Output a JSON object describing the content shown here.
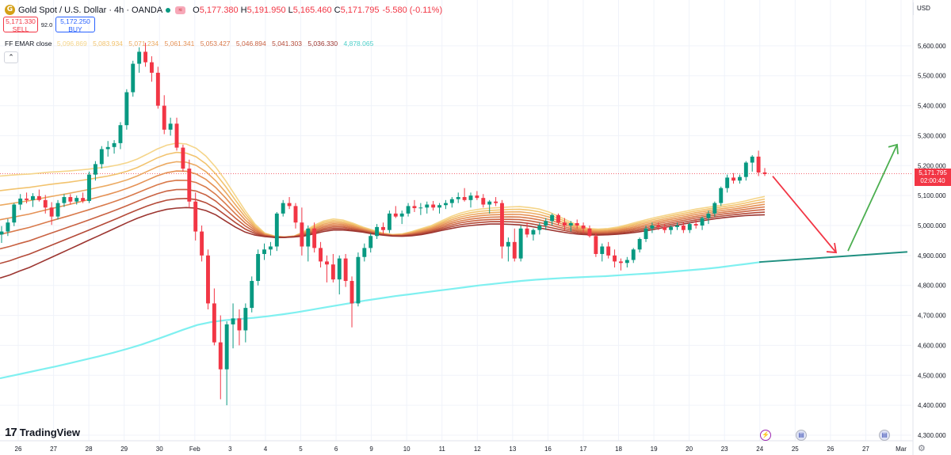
{
  "header": {
    "symbol_title": "Gold Spot / U.S. Dollar · 4h · OANDA",
    "icon_letter": "G",
    "open_label": "O",
    "open": "5,177.380",
    "high_label": "H",
    "high": "5,191.950",
    "low_label": "L",
    "low": "5,165.460",
    "close_label": "C",
    "close": "5,171.795",
    "change": "-5.580 (-0.11%)"
  },
  "trade": {
    "sell_price": "5,171.330",
    "sell_label": "SELL",
    "spread": "92.0",
    "buy_price": "5,172.250",
    "buy_label": "BUY"
  },
  "indicator": {
    "label": "FF EMAR close",
    "values": [
      "5,096.869",
      "5,083.934",
      "5,071.234",
      "5,061.341",
      "5,053.427",
      "5,046.894",
      "5,041.303",
      "5,036.330",
      "4,878.065"
    ],
    "colors": [
      "#f5d58a",
      "#f2c36e",
      "#ecaa62",
      "#e59155",
      "#d97a4b",
      "#c96242",
      "#b44a38",
      "#9c3530",
      "#4dd0c9"
    ],
    "collapse_icon": "chevron-up-icon",
    "collapse_glyph": "⌃"
  },
  "price_scale": {
    "currency": "USD",
    "ticks": [
      "5,600.000",
      "5,500.000",
      "5,400.000",
      "5,300.000",
      "5,200.000",
      "5,100.000",
      "5,000.000",
      "4,900.000",
      "4,800.000",
      "4,700.000",
      "4,600.000",
      "4,500.000",
      "4,400.000",
      "4,300.000"
    ],
    "current_price": "5,171.795",
    "countdown": "02:00:40"
  },
  "footer": {
    "brand": "TradingView",
    "brand_mark": "17",
    "settings_icon": "gear-icon",
    "settings_glyph": "⚙",
    "events": [
      {
        "icon": "flash-icon",
        "glyph": "⚡"
      },
      {
        "icon": "us-flag-icon",
        "glyph": "▤"
      },
      {
        "icon": "us-flag-icon",
        "glyph": "▤"
      }
    ]
  },
  "chart_data": {
    "type": "candlestick",
    "title": "Gold Spot / U.S. Dollar · 4h · OANDA",
    "xlabel": "",
    "ylabel": "",
    "ylim": [
      4300,
      5700
    ],
    "x_ticks": [
      "26",
      "27",
      "28",
      "29",
      "30",
      "Feb",
      "3",
      "4",
      "5",
      "6",
      "9",
      "10",
      "11",
      "12",
      "13",
      "16",
      "17",
      "18",
      "19",
      "20",
      "23",
      "24",
      "25",
      "26",
      "27",
      "Mar"
    ],
    "colors": {
      "up": "#089981",
      "down": "#f23645",
      "ema200": "#7ff0f0",
      "projection_down": "#f23645",
      "projection_up": "#4caf50",
      "trendline": "#1f8f80"
    },
    "candles": [
      [
        4970,
        4998,
        4942,
        4980
      ],
      [
        4980,
        5022,
        4965,
        5010
      ],
      [
        5010,
        5075,
        4998,
        5070
      ],
      [
        5070,
        5105,
        5052,
        5090
      ],
      [
        5090,
        5110,
        5074,
        5085
      ],
      [
        5085,
        5108,
        5062,
        5098
      ],
      [
        5098,
        5120,
        5080,
        5085
      ],
      [
        5085,
        5102,
        5040,
        5060
      ],
      [
        5060,
        5078,
        5002,
        5030
      ],
      [
        5030,
        5085,
        5020,
        5075
      ],
      [
        5075,
        5105,
        5062,
        5095
      ],
      [
        5095,
        5105,
        5070,
        5080
      ],
      [
        5080,
        5100,
        5070,
        5092
      ],
      [
        5092,
        5110,
        5075,
        5082
      ],
      [
        5082,
        5180,
        5075,
        5170
      ],
      [
        5170,
        5215,
        5150,
        5205
      ],
      [
        5205,
        5265,
        5190,
        5255
      ],
      [
        5255,
        5282,
        5230,
        5262
      ],
      [
        5262,
        5285,
        5240,
        5275
      ],
      [
        5275,
        5345,
        5255,
        5335
      ],
      [
        5335,
        5455,
        5320,
        5445
      ],
      [
        5445,
        5550,
        5430,
        5540
      ],
      [
        5540,
        5595,
        5510,
        5580
      ],
      [
        5580,
        5610,
        5530,
        5545
      ],
      [
        5545,
        5565,
        5480,
        5510
      ],
      [
        5510,
        5530,
        5390,
        5400
      ],
      [
        5400,
        5435,
        5305,
        5320
      ],
      [
        5320,
        5360,
        5300,
        5340
      ],
      [
        5340,
        5360,
        5250,
        5260
      ],
      [
        5260,
        5270,
        5180,
        5190
      ],
      [
        5190,
        5220,
        5060,
        5080
      ],
      [
        5080,
        5110,
        4950,
        4980
      ],
      [
        4980,
        5000,
        4880,
        4900
      ],
      [
        4900,
        4920,
        4720,
        4740
      ],
      [
        4740,
        4790,
        4600,
        4610
      ],
      [
        4610,
        4700,
        4420,
        4520
      ],
      [
        4520,
        4680,
        4400,
        4670
      ],
      [
        4670,
        4740,
        4590,
        4690
      ],
      [
        4690,
        4720,
        4600,
        4650
      ],
      [
        4650,
        4740,
        4610,
        4725
      ],
      [
        4725,
        4830,
        4710,
        4815
      ],
      [
        4815,
        4920,
        4800,
        4905
      ],
      [
        4905,
        4940,
        4885,
        4920
      ],
      [
        4920,
        4945,
        4900,
        4930
      ],
      [
        4930,
        5045,
        4915,
        5040
      ],
      [
        5040,
        5085,
        5030,
        5075
      ],
      [
        5075,
        5095,
        5055,
        5065
      ],
      [
        5065,
        5075,
        4990,
        5010
      ],
      [
        5010,
        5060,
        4900,
        4930
      ],
      [
        4930,
        5000,
        4880,
        4990
      ],
      [
        4990,
        5010,
        4910,
        4925
      ],
      [
        4925,
        4945,
        4860,
        4880
      ],
      [
        4880,
        4900,
        4810,
        4870
      ],
      [
        4870,
        4905,
        4810,
        4820
      ],
      [
        4820,
        4900,
        4770,
        4890
      ],
      [
        4890,
        4905,
        4795,
        4815
      ],
      [
        4815,
        4830,
        4660,
        4740
      ],
      [
        4740,
        4910,
        4730,
        4895
      ],
      [
        4895,
        4940,
        4880,
        4925
      ],
      [
        4925,
        4975,
        4910,
        4965
      ],
      [
        4965,
        5005,
        4955,
        4995
      ],
      [
        4995,
        5010,
        4970,
        4985
      ],
      [
        4985,
        5050,
        4975,
        5040
      ],
      [
        5040,
        5065,
        5025,
        5030
      ],
      [
        5030,
        5050,
        5005,
        5040
      ],
      [
        5040,
        5075,
        5030,
        5065
      ],
      [
        5065,
        5085,
        5045,
        5058
      ],
      [
        5058,
        5075,
        5035,
        5060
      ],
      [
        5060,
        5080,
        5040,
        5070
      ],
      [
        5070,
        5082,
        5050,
        5060
      ],
      [
        5060,
        5075,
        5040,
        5068
      ],
      [
        5068,
        5085,
        5055,
        5075
      ],
      [
        5075,
        5095,
        5060,
        5088
      ],
      [
        5088,
        5110,
        5075,
        5095
      ],
      [
        5095,
        5125,
        5080,
        5085
      ],
      [
        5085,
        5110,
        5060,
        5100
      ],
      [
        5100,
        5115,
        5085,
        5092
      ],
      [
        5092,
        5105,
        5060,
        5070
      ],
      [
        5070,
        5085,
        5040,
        5080
      ],
      [
        5080,
        5095,
        5065,
        5075
      ],
      [
        5075,
        5085,
        4890,
        4930
      ],
      [
        4930,
        4960,
        4880,
        4945
      ],
      [
        4945,
        4990,
        4880,
        4890
      ],
      [
        4890,
        5000,
        4880,
        4990
      ],
      [
        4990,
        5010,
        4960,
        4970
      ],
      [
        4970,
        4990,
        4950,
        4985
      ],
      [
        4985,
        5010,
        4970,
        5000
      ],
      [
        5000,
        5025,
        4985,
        5015
      ],
      [
        5015,
        5040,
        5000,
        5035
      ],
      [
        5035,
        5040,
        5000,
        5010
      ],
      [
        5010,
        5025,
        4985,
        5000
      ],
      [
        5000,
        5015,
        4980,
        5008
      ],
      [
        5008,
        5020,
        4990,
        5000
      ],
      [
        5000,
        5010,
        4975,
        4990
      ],
      [
        4990,
        5000,
        4960,
        4965
      ],
      [
        4965,
        4975,
        4895,
        4905
      ],
      [
        4905,
        4940,
        4880,
        4930
      ],
      [
        4930,
        4945,
        4890,
        4900
      ],
      [
        4900,
        4920,
        4860,
        4880
      ],
      [
        4880,
        4890,
        4850,
        4875
      ],
      [
        4875,
        4895,
        4860,
        4885
      ],
      [
        4885,
        4925,
        4875,
        4920
      ],
      [
        4920,
        4960,
        4910,
        4955
      ],
      [
        4955,
        5000,
        4945,
        4990
      ],
      [
        4990,
        5010,
        4975,
        5000
      ],
      [
        5000,
        5010,
        4985,
        4995
      ],
      [
        4995,
        5005,
        4975,
        4985
      ],
      [
        4985,
        5000,
        4970,
        4995
      ],
      [
        4995,
        5010,
        4985,
        5000
      ],
      [
        5000,
        5010,
        4975,
        4985
      ],
      [
        4985,
        5010,
        4975,
        5005
      ],
      [
        5005,
        5020,
        4990,
        5000
      ],
      [
        5000,
        5030,
        4985,
        5025
      ],
      [
        5025,
        5050,
        5005,
        5040
      ],
      [
        5040,
        5080,
        5030,
        5075
      ],
      [
        5075,
        5130,
        5065,
        5125
      ],
      [
        5125,
        5170,
        5110,
        5160
      ],
      [
        5160,
        5175,
        5140,
        5150
      ],
      [
        5150,
        5170,
        5140,
        5162
      ],
      [
        5162,
        5215,
        5150,
        5210
      ],
      [
        5210,
        5235,
        5180,
        5230
      ],
      [
        5230,
        5250,
        5165,
        5177
      ],
      [
        5177.38,
        5191.95,
        5165.46,
        5171.795
      ]
    ],
    "ema_fast_values": [
      5165,
      5168,
      5170,
      5172,
      5175,
      5178,
      5180,
      5182,
      5185,
      5188,
      5192,
      5196,
      5202,
      5210,
      5222,
      5238,
      5255,
      5268,
      5275,
      5272,
      5258,
      5232,
      5195,
      5150,
      5100,
      5050,
      5005,
      4975,
      4965,
      4962,
      4965,
      4980,
      5000,
      5015,
      5022,
      5018,
      5008,
      4995,
      4985,
      4975,
      4970,
      4972,
      4980,
      4990,
      5000,
      5015,
      5030,
      5042,
      5050,
      5055,
      5058,
      5060,
      5062,
      5063,
      5060,
      5055,
      5045,
      5030,
      5015,
      5000,
      4990,
      4988,
      4990,
      4995,
      5003,
      5012,
      5020,
      5028,
      5035,
      5042,
      5048,
      5055,
      5060,
      5065,
      5070,
      5075,
      5082,
      5090,
      5097
    ],
    "ema_slow_values": [
      4825,
      4835,
      4848,
      4860,
      4875,
      4890,
      4905,
      4920,
      4935,
      4950,
      4965,
      4980,
      4995,
      5010,
      5024,
      5036,
      5046,
      5054,
      5058,
      5060,
      5058,
      5050,
      5036,
      5015,
      4995,
      4978,
      4968,
      4963,
      4960,
      4960,
      4962,
      4965,
      4972,
      4980,
      4985,
      4985,
      4982,
      4978,
      4972,
      4968,
      4965,
      4964,
      4966,
      4970,
      4976,
      4983,
      4990,
      4996,
      5000,
      5003,
      5005,
      5005,
      5004,
      5002,
      4998,
      4992,
      4986,
      4980,
      4975,
      4971,
      4969,
      4968,
      4969,
      4971,
      4974,
      4978,
      4983,
      4989,
      4995,
      5001,
      5007,
      5013,
      5018,
      5023,
      5027,
      5030,
      5033,
      5035,
      5036
    ],
    "ema200_values": [
      4490,
      4500,
      4510,
      4520,
      4530,
      4541,
      4552,
      4563,
      4575,
      4588,
      4602,
      4618,
      4635,
      4652,
      4668,
      4678,
      4684,
      4688,
      4692,
      4697,
      4703,
      4710,
      4718,
      4726,
      4734,
      4742,
      4750,
      4757,
      4764,
      4770,
      4776,
      4782,
      4788,
      4794,
      4800,
      4805,
      4810,
      4815,
      4819,
      4822,
      4825,
      4827,
      4829,
      4831,
      4834,
      4837,
      4840,
      4843,
      4847,
      4851,
      4855,
      4860,
      4866,
      4872,
      4878
    ],
    "trendline": {
      "from": [
        4878,
        4878
      ],
      "to": [
        4912,
        4912
      ]
    },
    "projection": [
      5170,
      4910,
      5270
    ]
  }
}
